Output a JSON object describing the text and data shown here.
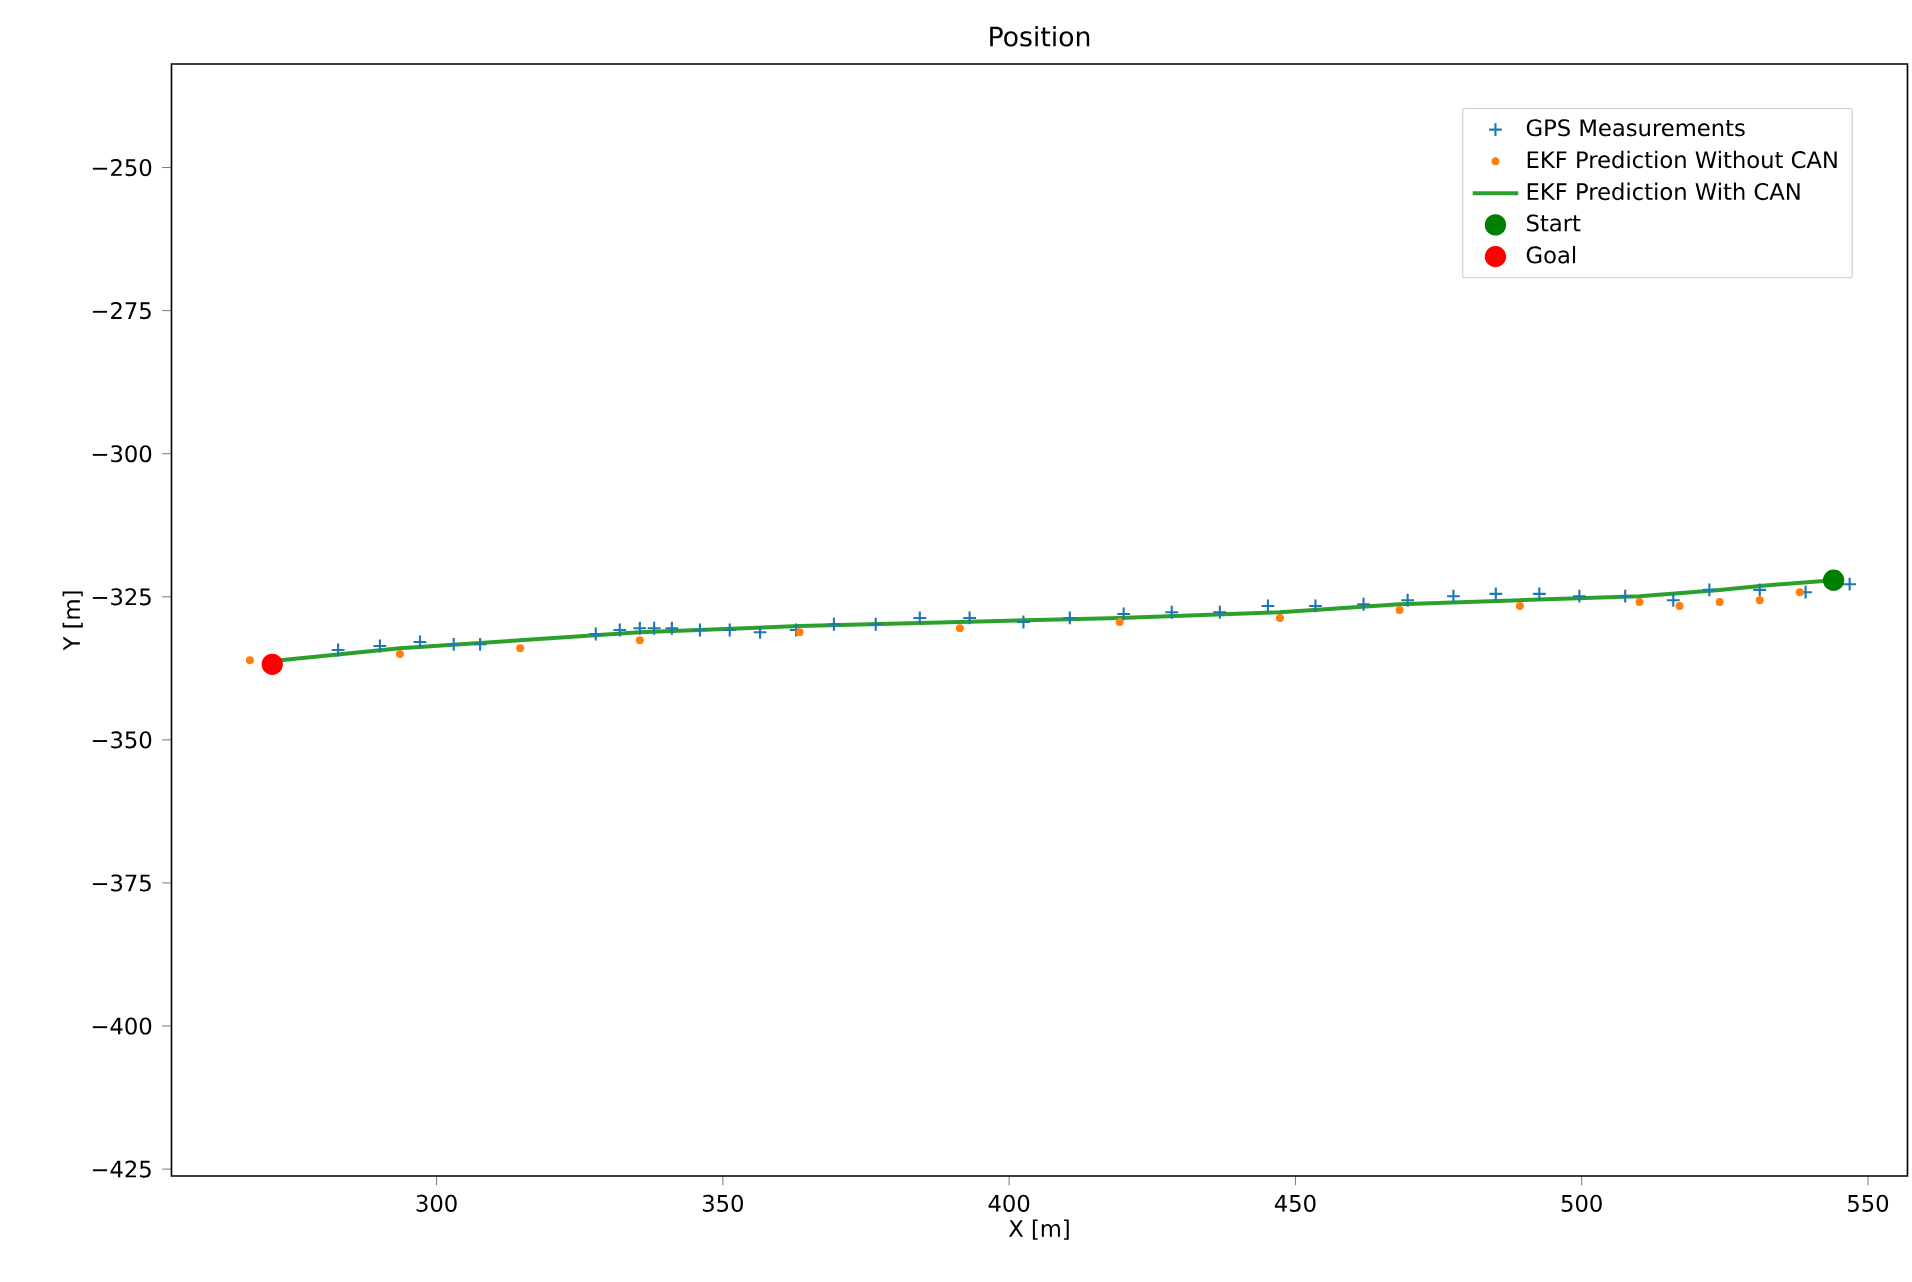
{
  "chart_data": {
    "type": "scatter",
    "title": "Position",
    "xlabel": "X [m]",
    "ylabel": "Y [m]",
    "xlim": [
      253.7,
      556.9
    ],
    "ylim": [
      -426.2,
      -231.9
    ],
    "xticks": [
      300,
      350,
      400,
      450,
      500,
      550
    ],
    "yticks": [
      {
        "value": -425,
        "label": "−425"
      },
      {
        "value": -400,
        "label": "−400"
      },
      {
        "value": -375,
        "label": "−375"
      },
      {
        "value": -350,
        "label": "−350"
      },
      {
        "value": -325,
        "label": "−325"
      },
      {
        "value": -300,
        "label": "−300"
      },
      {
        "value": -275,
        "label": "−275"
      },
      {
        "value": -250,
        "label": "−250"
      }
    ],
    "grid": false,
    "legend": "top right",
    "series": [
      {
        "name": "GPS Measurements",
        "marker": "cross",
        "color": "#1f77b4",
        "x": [
          282.8,
          290.1,
          297.1,
          303.0,
          307.6,
          327.8,
          332.0,
          335.5,
          338.0,
          341.1,
          346.0,
          351.2,
          356.5,
          362.8,
          369.4,
          376.7,
          384.4,
          393.1,
          402.5,
          410.6,
          420.0,
          428.4,
          436.8,
          445.2,
          453.5,
          461.9,
          469.6,
          477.6,
          485.0,
          492.6,
          499.6,
          507.6,
          516.0,
          522.3,
          531.1,
          539.1,
          546.8
        ],
        "values": [
          -334.3,
          -333.6,
          -332.9,
          -333.3,
          -333.3,
          -331.5,
          -330.8,
          -330.5,
          -330.5,
          -330.5,
          -330.8,
          -330.8,
          -331.2,
          -330.8,
          -329.8,
          -329.8,
          -328.7,
          -328.7,
          -329.4,
          -328.7,
          -328.0,
          -327.7,
          -327.7,
          -326.6,
          -326.6,
          -326.3,
          -325.6,
          -324.9,
          -324.5,
          -324.5,
          -324.9,
          -324.9,
          -325.6,
          -323.8,
          -323.8,
          -324.2,
          -322.8
        ]
      },
      {
        "name": "EKF Prediction Without CAN",
        "marker": "circle",
        "color": "#ff7f0e",
        "x": [
          267.4,
          293.6,
          314.6,
          335.5,
          363.4,
          391.4,
          419.3,
          447.3,
          468.2,
          489.2,
          510.1,
          517.1,
          524.1,
          531.1,
          538.1
        ],
        "values": [
          -336.1,
          -335.0,
          -334.0,
          -332.6,
          -331.2,
          -330.5,
          -329.4,
          -328.7,
          -327.3,
          -326.6,
          -325.9,
          -326.6,
          -325.9,
          -325.6,
          -324.2
        ]
      },
      {
        "name": "EKF Prediction With CAN",
        "type": "line",
        "marker": "none",
        "color": "#2ca02c",
        "x": [
          272.7,
          293.6,
          314.6,
          335.5,
          363.4,
          391.4,
          419.3,
          447.3,
          468.2,
          489.2,
          510.1,
          524.1,
          531.1,
          544.0
        ],
        "values": [
          -336.1,
          -334.0,
          -332.6,
          -331.2,
          -330.1,
          -329.4,
          -328.7,
          -327.7,
          -326.3,
          -325.6,
          -324.9,
          -323.8,
          -323.1,
          -322.1
        ]
      },
      {
        "name": "Start",
        "marker": "circle",
        "color": "#008000",
        "x": [
          544.0
        ],
        "values": [
          -322.1
        ]
      },
      {
        "name": "Goal",
        "marker": "circle",
        "color": "#ff0000",
        "x": [
          271.3
        ],
        "values": [
          -336.8
        ]
      }
    ]
  }
}
